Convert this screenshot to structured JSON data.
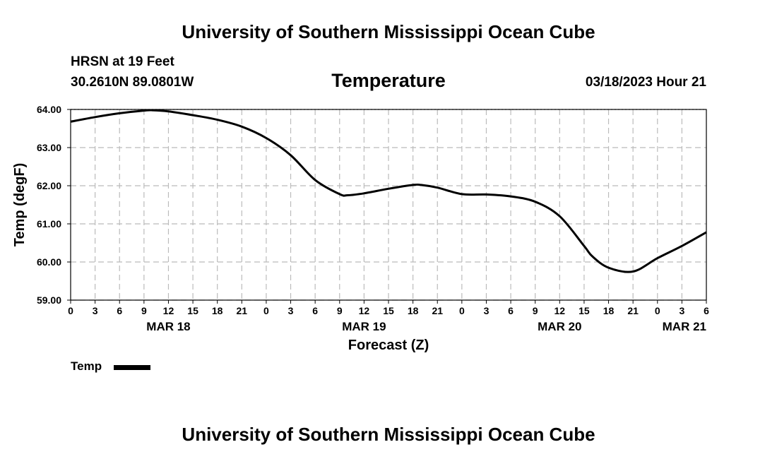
{
  "header": {
    "title": "University of Southern Mississippi Ocean Cube",
    "station": "HRSN at 19 Feet",
    "coords": "30.2610N  89.0801W",
    "datetime": "03/18/2023 Hour 21"
  },
  "footer": {
    "title": "University of Southern Mississippi Ocean Cube"
  },
  "legend": {
    "label": "Temp"
  },
  "chart_data": {
    "type": "line",
    "title": "Temperature",
    "xlabel": "Forecast (Z)",
    "ylabel": "Temp (degF)",
    "ylim": [
      59.0,
      64.0
    ],
    "yticks": [
      "64.00",
      "63.00",
      "62.00",
      "61.00",
      "60.00",
      "59.00"
    ],
    "ytick_values": [
      64,
      63,
      62,
      61,
      60,
      59
    ],
    "xlim": [
      0,
      78
    ],
    "xtick_labels": [
      "0",
      "3",
      "6",
      "9",
      "12",
      "15",
      "18",
      "21",
      "0",
      "3",
      "6",
      "9",
      "12",
      "15",
      "18",
      "21",
      "0",
      "3",
      "6",
      "9",
      "12",
      "15",
      "18",
      "21",
      "0",
      "3",
      "6"
    ],
    "date_labels": [
      {
        "label": "MAR 18",
        "hour": 12
      },
      {
        "label": "MAR 19",
        "hour": 36
      },
      {
        "label": "MAR 20",
        "hour": 60
      },
      {
        "label": "MAR 21",
        "hour": 78
      }
    ],
    "grid": true,
    "series": [
      {
        "name": "Temp",
        "color": "#000000",
        "x": [
          0,
          3,
          6,
          9,
          10,
          12,
          15,
          18,
          21,
          24,
          27,
          30,
          33,
          34,
          36,
          39,
          42,
          43,
          45,
          48,
          51,
          54,
          57,
          60,
          63,
          64,
          66,
          69,
          72,
          75,
          78
        ],
        "y": [
          63.68,
          63.8,
          63.9,
          63.97,
          63.98,
          63.95,
          63.85,
          63.73,
          63.55,
          63.25,
          62.8,
          62.15,
          61.78,
          61.75,
          61.8,
          61.92,
          62.02,
          62.02,
          61.95,
          61.78,
          61.77,
          61.72,
          61.58,
          61.2,
          60.42,
          60.15,
          59.85,
          59.75,
          60.1,
          60.42,
          60.78
        ]
      }
    ]
  }
}
